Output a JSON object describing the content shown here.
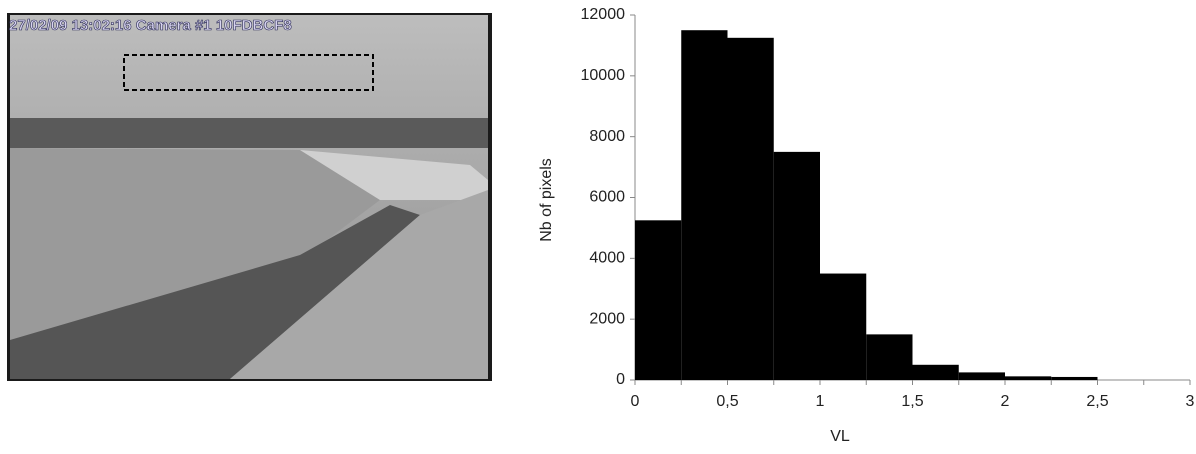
{
  "photo": {
    "caption": "27/02/09 13:02:16 Camera #1 10FDBCF8"
  },
  "chart_data": {
    "type": "histogram",
    "bins": [
      0,
      0.25,
      0.5,
      0.75,
      1,
      1.25,
      1.5,
      1.75,
      2,
      2.25,
      2.5,
      2.75,
      3
    ],
    "values": [
      5250,
      11500,
      11250,
      7500,
      3500,
      1500,
      500,
      250,
      120,
      100,
      0,
      0
    ],
    "color": "#000000",
    "x_label": "VL",
    "y_label": "Nb of pixels",
    "xlim": [
      0,
      3
    ],
    "xticks": [
      0,
      {
        "value": 0.5,
        "label": "0,5"
      },
      1,
      {
        "value": 1.5,
        "label": "1,5"
      },
      2,
      {
        "value": 2.5,
        "label": "2,5"
      },
      3
    ],
    "ylim": [
      0,
      12000
    ],
    "yticks": [
      0,
      2000,
      4000,
      6000,
      8000,
      10000,
      12000
    ],
    "grid": false
  }
}
